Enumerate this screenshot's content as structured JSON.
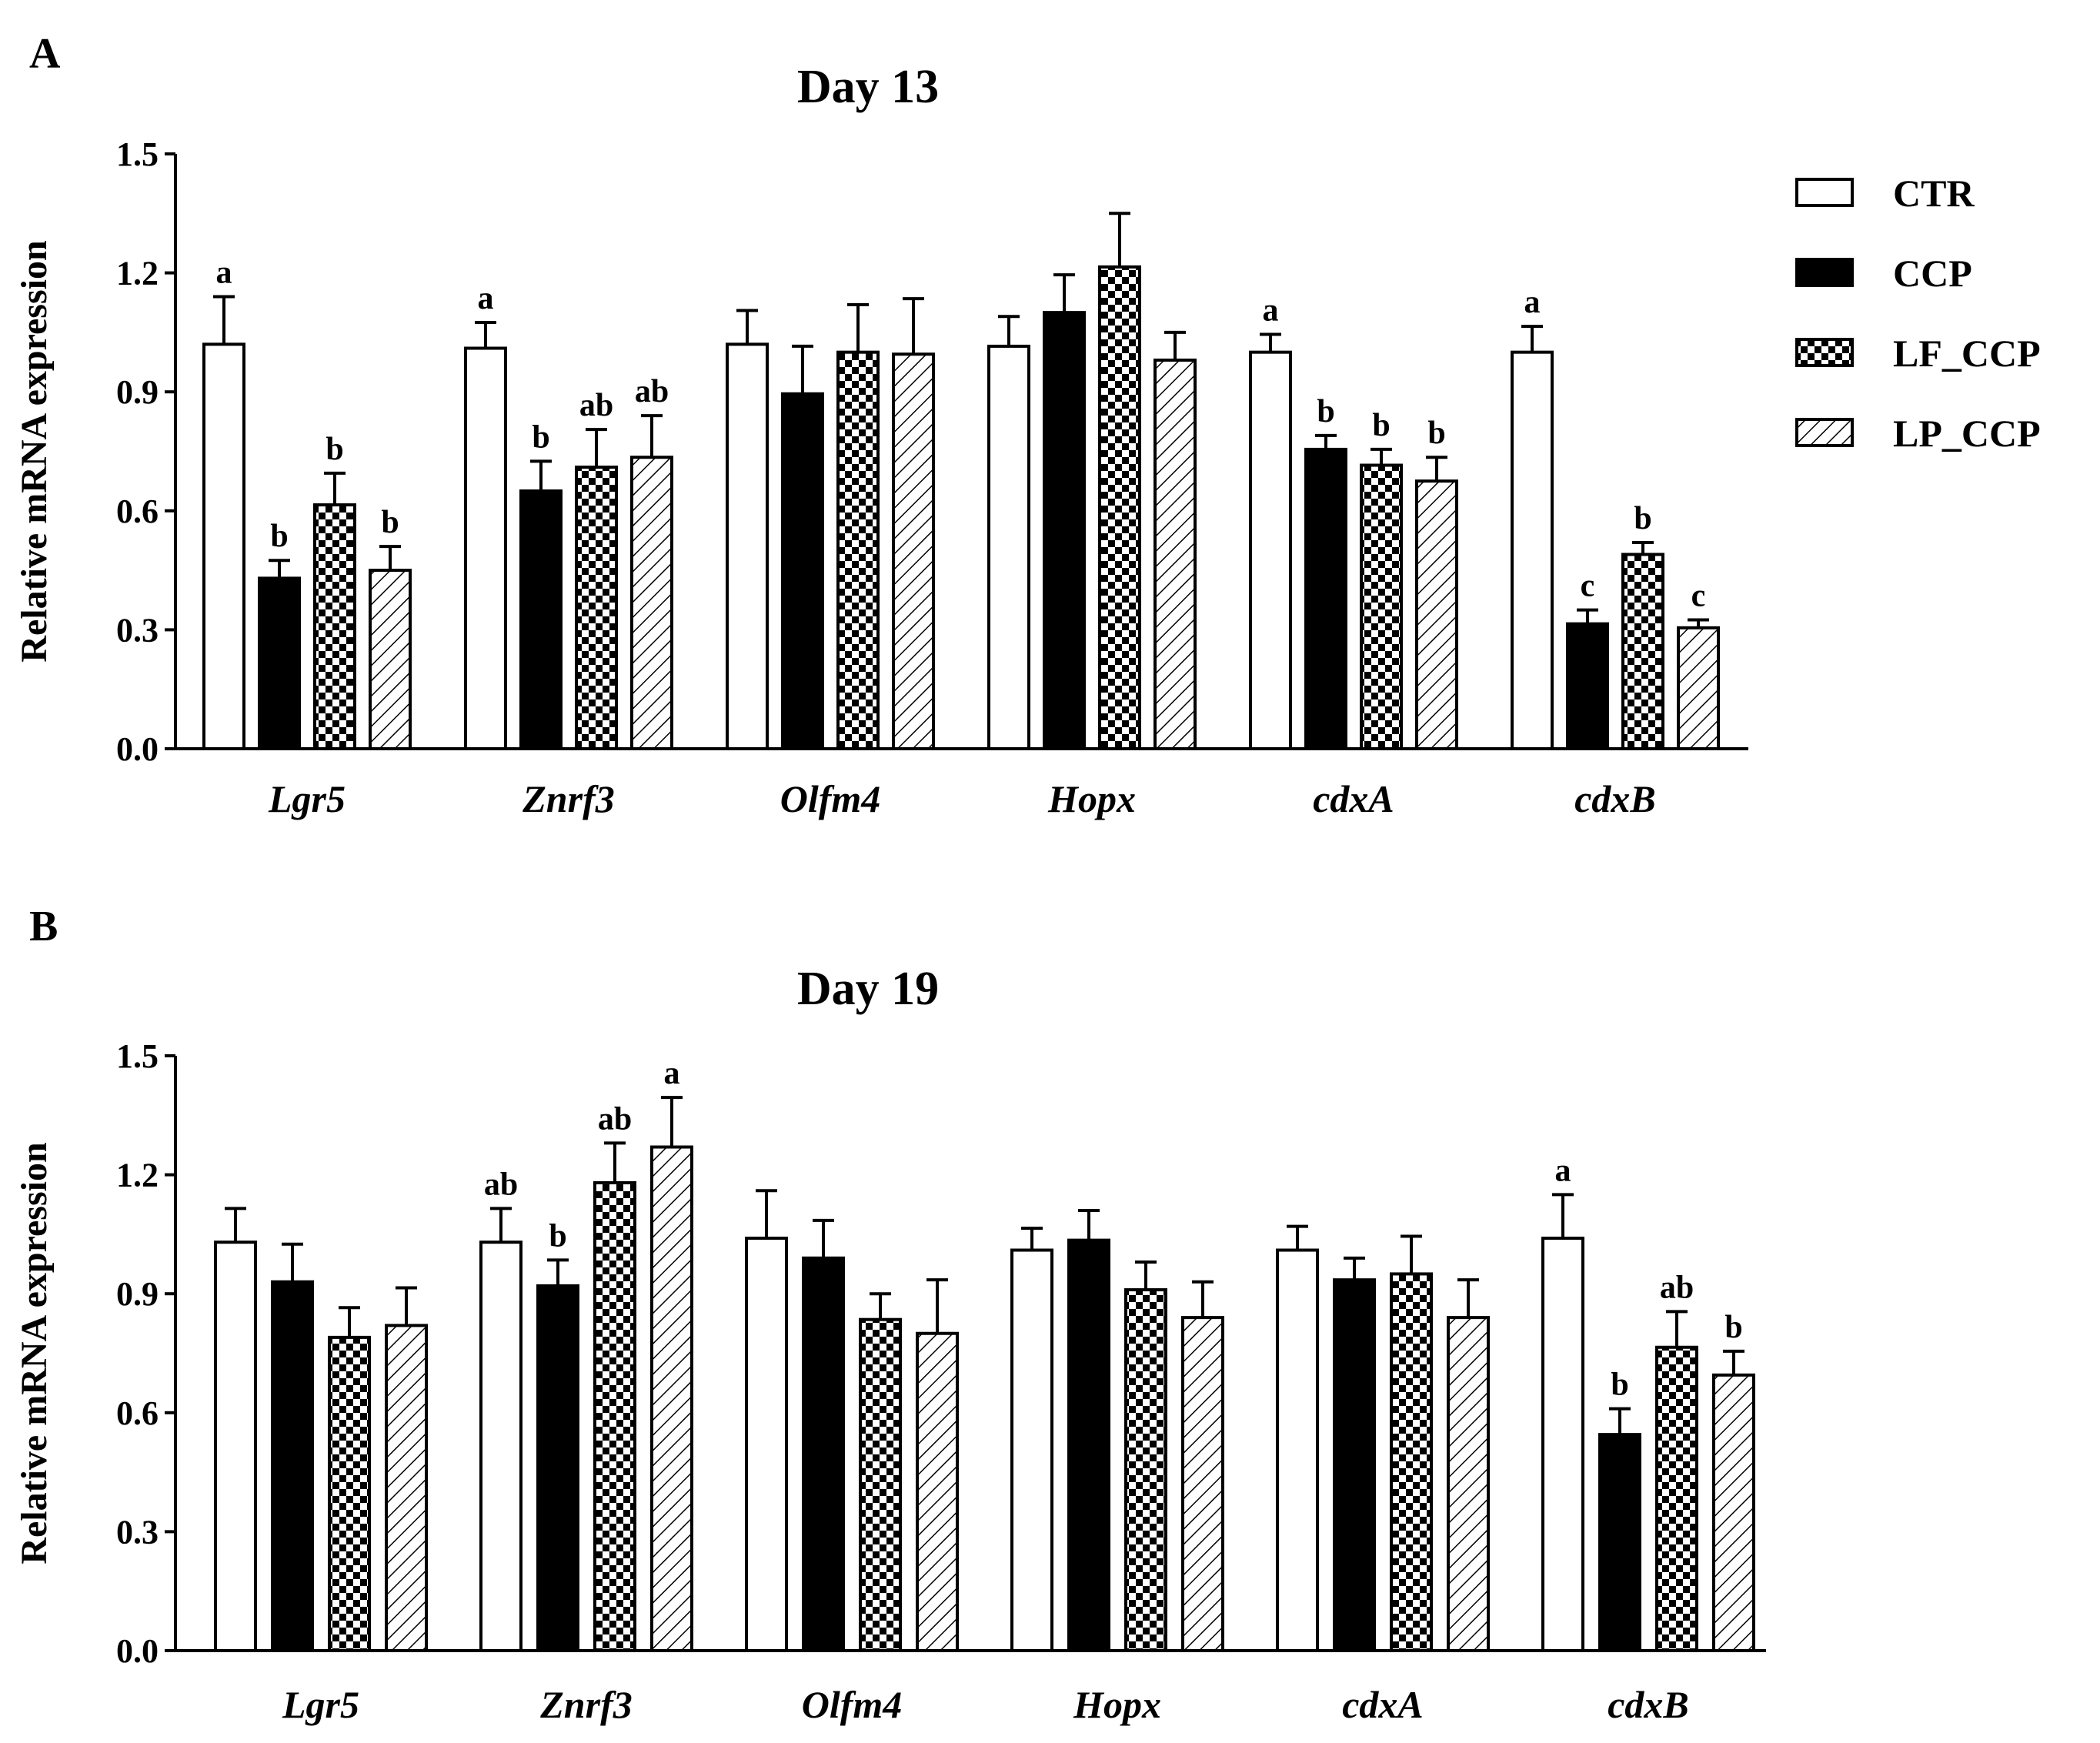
{
  "series_styles": [
    {
      "name": "CTR",
      "pattern": "white"
    },
    {
      "name": "CCP",
      "pattern": "black"
    },
    {
      "name": "LF_CCP",
      "pattern": "checker"
    },
    {
      "name": "LP_CCP",
      "pattern": "hatch"
    }
  ],
  "legend": {
    "items": [
      "CTR",
      "CCP",
      "LF_CCP",
      "LP_CCP"
    ]
  },
  "chart_data": [
    {
      "type": "bar",
      "panel": "A",
      "title": "Day 13",
      "ylabel": "Relative mRNA expression",
      "xlabel": "",
      "ylim": [
        0,
        1.5
      ],
      "yticks": [
        "0.0",
        "0.3",
        "0.6",
        "0.9",
        "1.2",
        "1.5"
      ],
      "categories": [
        "Lgr5",
        "Znrf3",
        "Olfm4",
        "Hopx",
        "cdxA",
        "cdxB"
      ],
      "series": [
        {
          "name": "CTR",
          "values": [
            1.02,
            1.01,
            1.02,
            1.015,
            1.0,
            1.0
          ],
          "errors": [
            0.12,
            0.065,
            0.085,
            0.075,
            0.045,
            0.065
          ],
          "labels": [
            "a",
            "a",
            "",
            "",
            "a",
            "a"
          ]
        },
        {
          "name": "CCP",
          "values": [
            0.43,
            0.65,
            0.895,
            1.1,
            0.755,
            0.315
          ],
          "errors": [
            0.045,
            0.075,
            0.12,
            0.095,
            0.035,
            0.035
          ],
          "labels": [
            "b",
            "b",
            "",
            "",
            "b",
            "c"
          ]
        },
        {
          "name": "LF_CCP",
          "values": [
            0.615,
            0.71,
            1.0,
            1.215,
            0.715,
            0.49
          ],
          "errors": [
            0.08,
            0.095,
            0.12,
            0.135,
            0.04,
            0.03
          ],
          "labels": [
            "b",
            "ab",
            "",
            "",
            "b",
            "b"
          ]
        },
        {
          "name": "LP_CCP",
          "values": [
            0.45,
            0.735,
            0.995,
            0.98,
            0.675,
            0.305
          ],
          "errors": [
            0.06,
            0.105,
            0.14,
            0.07,
            0.06,
            0.02
          ],
          "labels": [
            "b",
            "ab",
            "",
            "",
            "b",
            "c"
          ]
        }
      ]
    },
    {
      "type": "bar",
      "panel": "B",
      "title": "Day 19",
      "ylabel": "Relative mRNA expression",
      "xlabel": "",
      "ylim": [
        0,
        1.5
      ],
      "yticks": [
        "0.0",
        "0.3",
        "0.6",
        "0.9",
        "1.2",
        "1.5"
      ],
      "categories": [
        "Lgr5",
        "Znrf3",
        "Olfm4",
        "Hopx",
        "cdxA",
        "cdxB"
      ],
      "series": [
        {
          "name": "CTR",
          "values": [
            1.03,
            1.03,
            1.04,
            1.01,
            1.01,
            1.04
          ],
          "errors": [
            0.085,
            0.085,
            0.12,
            0.055,
            0.06,
            0.11
          ],
          "labels": [
            "",
            "ab",
            "",
            "",
            "",
            "a"
          ]
        },
        {
          "name": "CCP",
          "values": [
            0.93,
            0.92,
            0.99,
            1.035,
            0.935,
            0.545
          ],
          "errors": [
            0.095,
            0.065,
            0.095,
            0.075,
            0.055,
            0.065
          ],
          "labels": [
            "",
            "b",
            "",
            "",
            "",
            "b"
          ]
        },
        {
          "name": "LF_CCP",
          "values": [
            0.79,
            1.18,
            0.835,
            0.91,
            0.95,
            0.765
          ],
          "errors": [
            0.075,
            0.1,
            0.065,
            0.07,
            0.095,
            0.09
          ],
          "labels": [
            "",
            "ab",
            "",
            "",
            "",
            "ab"
          ]
        },
        {
          "name": "LP_CCP",
          "values": [
            0.82,
            1.27,
            0.8,
            0.84,
            0.84,
            0.695
          ],
          "errors": [
            0.095,
            0.125,
            0.135,
            0.09,
            0.095,
            0.06
          ],
          "labels": [
            "",
            "a",
            "",
            "",
            "",
            "b"
          ]
        }
      ]
    }
  ]
}
